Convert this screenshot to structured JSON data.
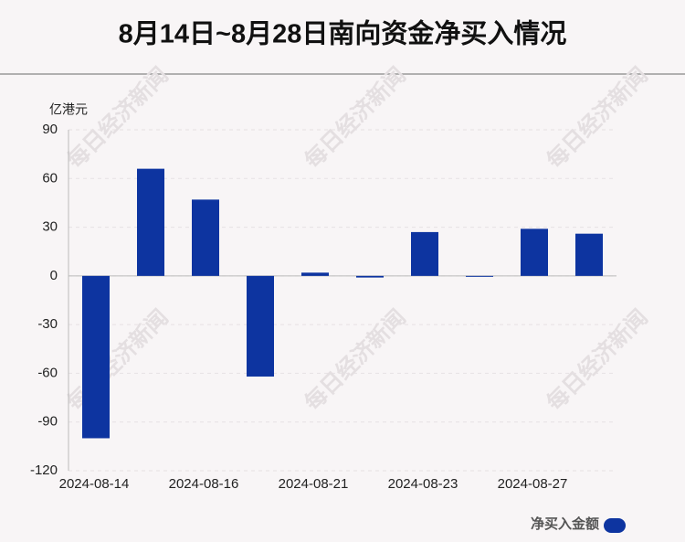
{
  "chart_data": {
    "type": "bar",
    "title": "8月14日~8月28日南向资金净买入情况",
    "y_label": "亿港元",
    "watermark": "每日经济新闻",
    "categories": [
      "2024-08-14",
      null,
      "2024-08-16",
      null,
      "2024-08-21",
      null,
      "2024-08-23",
      null,
      "2024-08-27",
      null
    ],
    "series": [
      {
        "name": "净买入金额",
        "color": "#0d34a0",
        "values": [
          -100,
          66,
          47,
          -62,
          2,
          -1,
          27,
          -0.3,
          29,
          26
        ]
      }
    ],
    "ylim": [
      -120,
      90
    ],
    "yticks": [
      -120,
      -90,
      -60,
      -30,
      0,
      30,
      60,
      90
    ],
    "grid": true,
    "legend": "bottom-right"
  }
}
